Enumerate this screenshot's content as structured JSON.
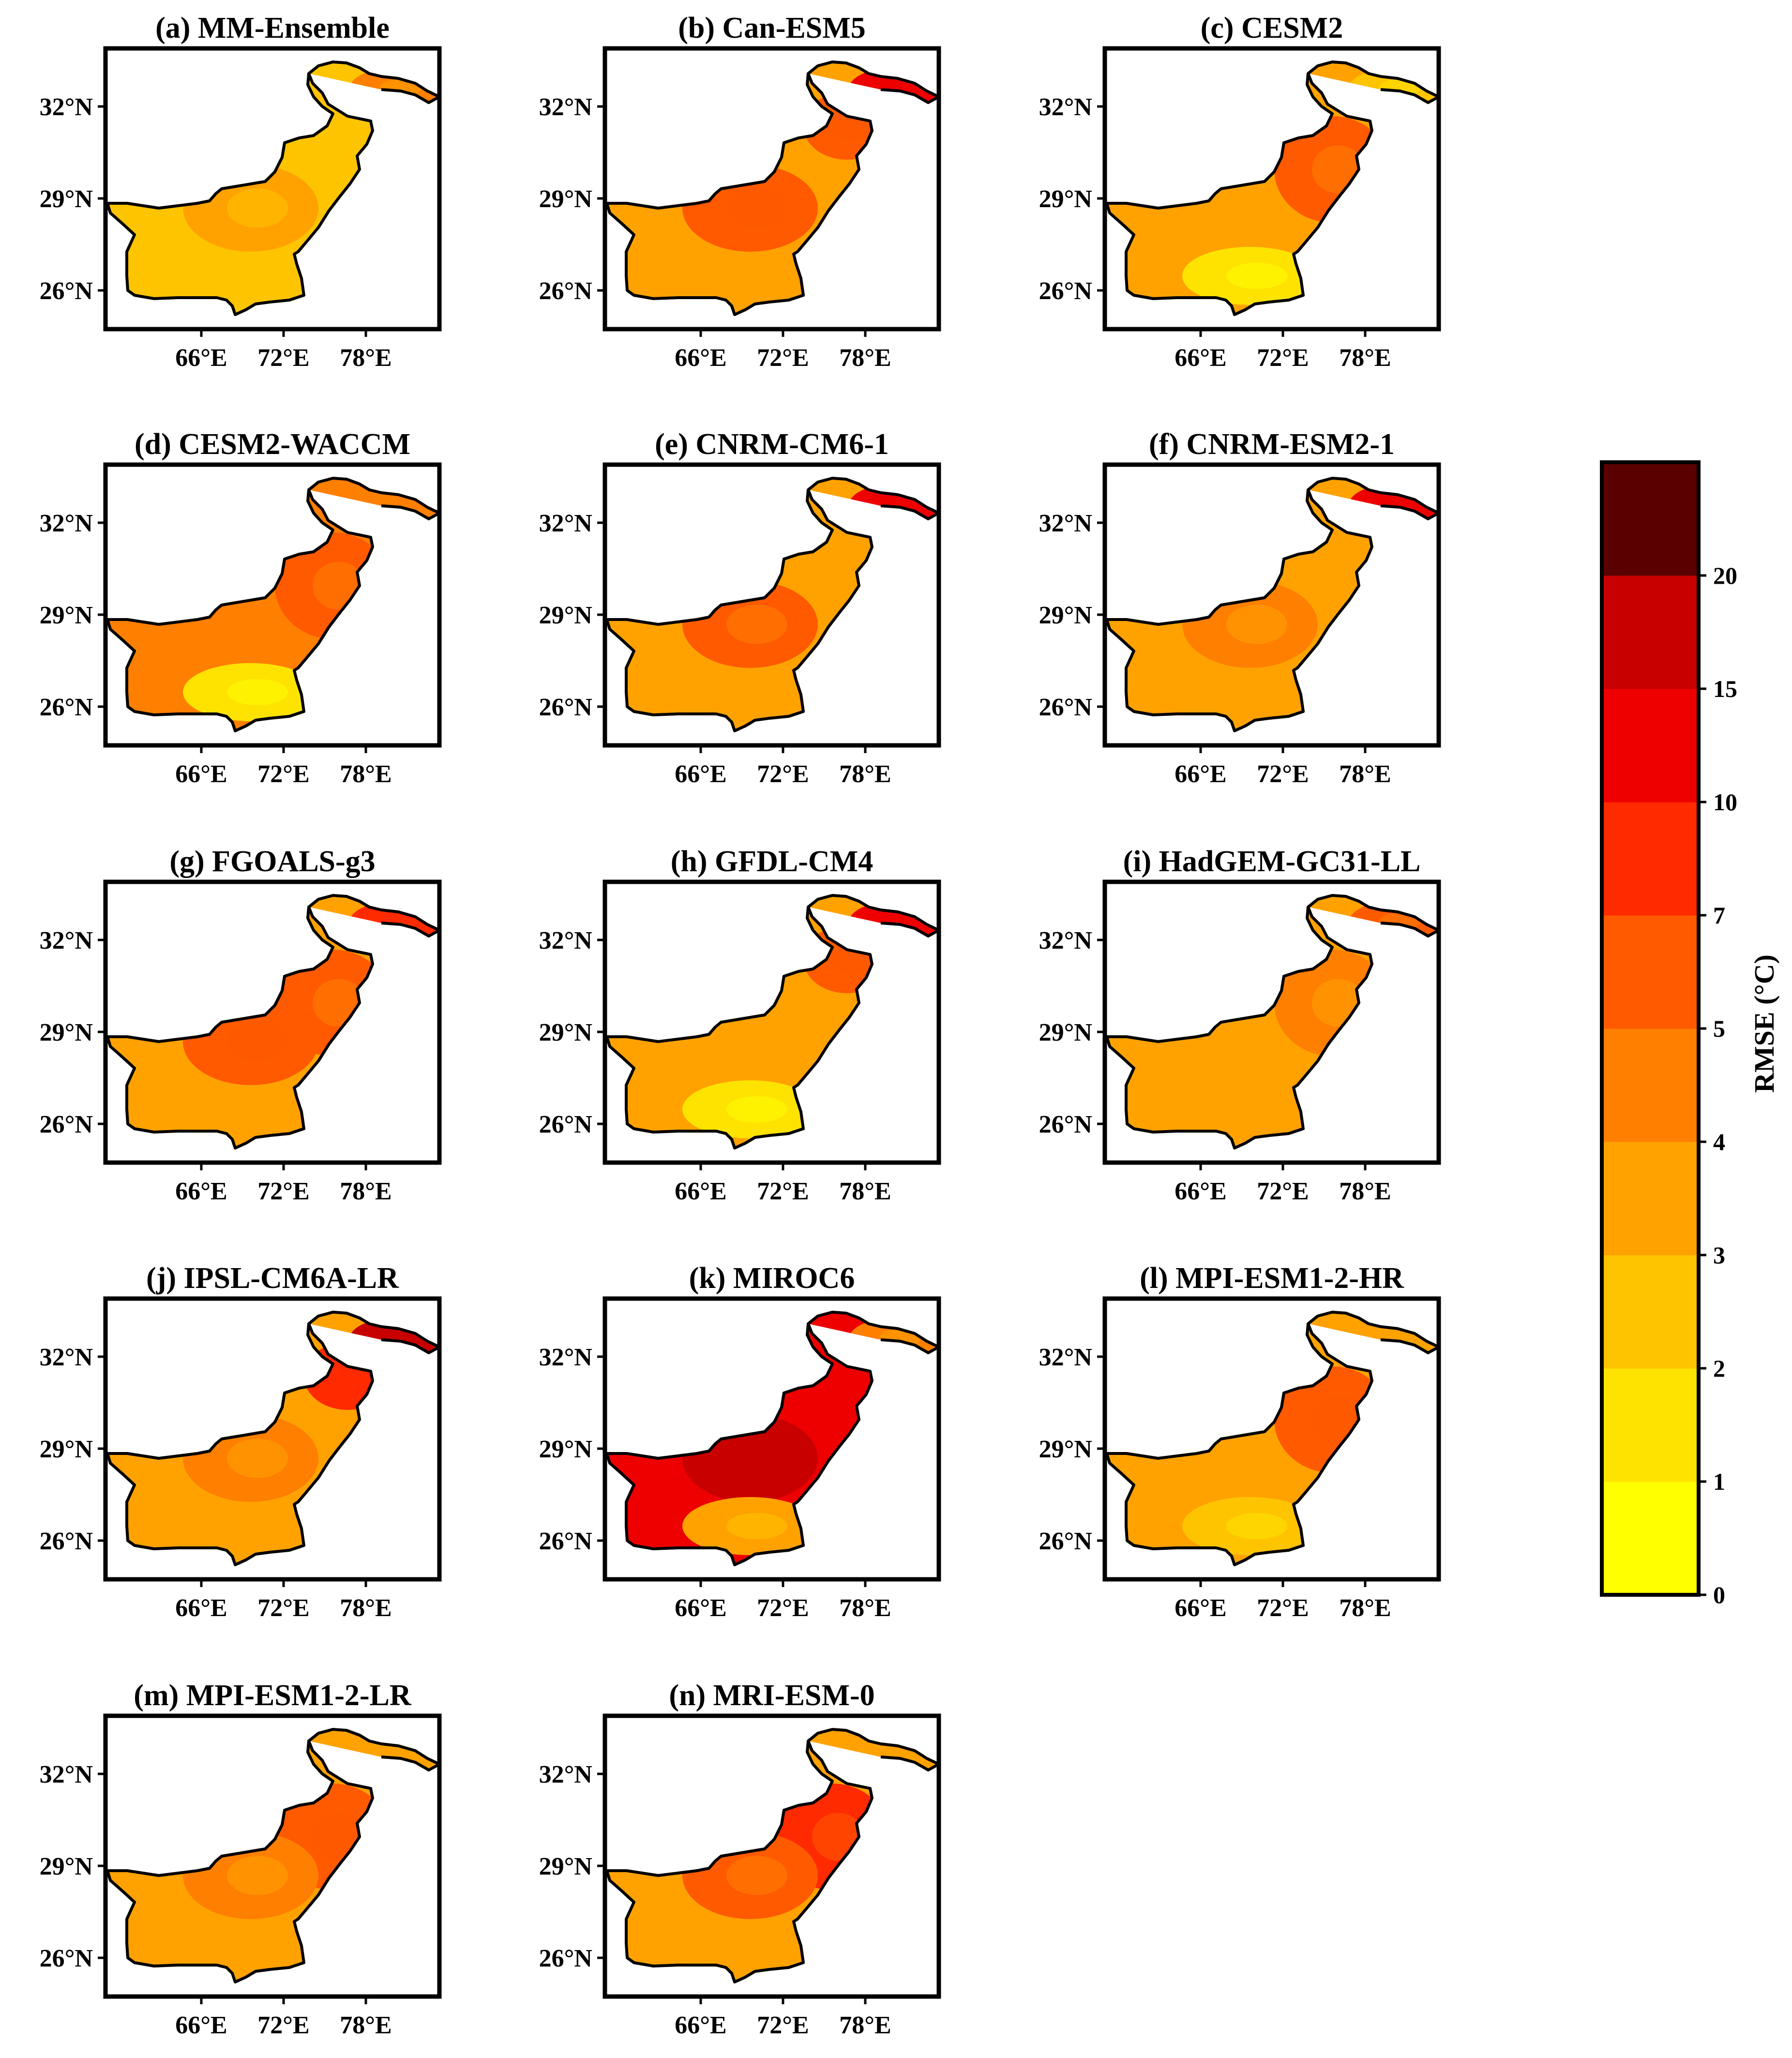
{
  "chart_data": {
    "type": "heatmap",
    "description_units": "RMSE (°C)",
    "panels": [
      {
        "label": "(a) MM-Ensemble",
        "base": 2,
        "hotspots": [
          {
            "region": "north-east tip",
            "value": 4
          },
          {
            "region": "center",
            "value": 3
          }
        ]
      },
      {
        "label": "(b) Can-ESM5",
        "base": 3,
        "hotspots": [
          {
            "region": "north-east tip",
            "value": 12
          },
          {
            "region": "north",
            "value": 6
          },
          {
            "region": "center",
            "value": 6
          }
        ]
      },
      {
        "label": "(c) CESM2",
        "base": 3,
        "hotspots": [
          {
            "region": "north-east tip",
            "value": 2
          },
          {
            "region": "east",
            "value": 5
          },
          {
            "region": "south",
            "value": 1
          }
        ]
      },
      {
        "label": "(d) CESM2-WACCM",
        "base": 4,
        "hotspots": [
          {
            "region": "east",
            "value": 5
          },
          {
            "region": "south",
            "value": 1
          }
        ]
      },
      {
        "label": "(e) CNRM-CM6-1",
        "base": 3,
        "hotspots": [
          {
            "region": "north-east tip",
            "value": 12
          },
          {
            "region": "center",
            "value": 5
          }
        ]
      },
      {
        "label": "(f) CNRM-ESM2-1",
        "base": 3,
        "hotspots": [
          {
            "region": "north-east tip",
            "value": 12
          },
          {
            "region": "center",
            "value": 4
          }
        ]
      },
      {
        "label": "(g) FGOALS-g3",
        "base": 3,
        "hotspots": [
          {
            "region": "north-east tip",
            "value": 8
          },
          {
            "region": "east",
            "value": 5
          },
          {
            "region": "center",
            "value": 6
          }
        ]
      },
      {
        "label": "(h) GFDL-CM4",
        "base": 3,
        "hotspots": [
          {
            "region": "north-east tip",
            "value": 12
          },
          {
            "region": "north",
            "value": 6
          },
          {
            "region": "south",
            "value": 1
          }
        ]
      },
      {
        "label": "(i) HadGEM-GC31-LL",
        "base": 3,
        "hotspots": [
          {
            "region": "north-east tip",
            "value": 5
          },
          {
            "region": "east",
            "value": 4
          }
        ]
      },
      {
        "label": "(j) IPSL-CM6A-LR",
        "base": 3,
        "hotspots": [
          {
            "region": "north-east tip",
            "value": 17
          },
          {
            "region": "north",
            "value": 8
          },
          {
            "region": "center",
            "value": 4
          }
        ]
      },
      {
        "label": "(k) MIROC6",
        "base": 12,
        "hotspots": [
          {
            "region": "center",
            "value": 17
          },
          {
            "region": "north-east tip",
            "value": 4
          },
          {
            "region": "south",
            "value": 3
          }
        ]
      },
      {
        "label": "(l) MPI-ESM1-2-HR",
        "base": 3,
        "hotspots": [
          {
            "region": "east",
            "value": 6
          },
          {
            "region": "south",
            "value": 2
          }
        ]
      },
      {
        "label": "(m) MPI-ESM1-2-LR",
        "base": 3,
        "hotspots": [
          {
            "region": "east",
            "value": 6
          },
          {
            "region": "center",
            "value": 4
          }
        ]
      },
      {
        "label": "(n) MRI-ESM-0",
        "base": 3,
        "hotspots": [
          {
            "region": "east",
            "value": 7
          },
          {
            "region": "center",
            "value": 5
          }
        ]
      }
    ],
    "x_ticks": [
      "66°E",
      "72°E",
      "78°E"
    ],
    "y_ticks": [
      "32°N",
      "29°N",
      "26°N"
    ],
    "colorbar": {
      "label": "RMSE (°C)",
      "bounds": [
        0,
        1,
        2,
        3,
        4,
        5,
        7,
        10,
        15,
        20
      ],
      "tick_labels": [
        "0",
        "1",
        "2",
        "3",
        "4",
        "5",
        "7",
        "10",
        "15",
        "20"
      ],
      "colors": [
        "#ffff00",
        "#ffe300",
        "#ffc400",
        "#ffa200",
        "#ff7f00",
        "#ff5a00",
        "#ff2a00",
        "#ee0000",
        "#c80000",
        "#5a0000"
      ]
    }
  }
}
